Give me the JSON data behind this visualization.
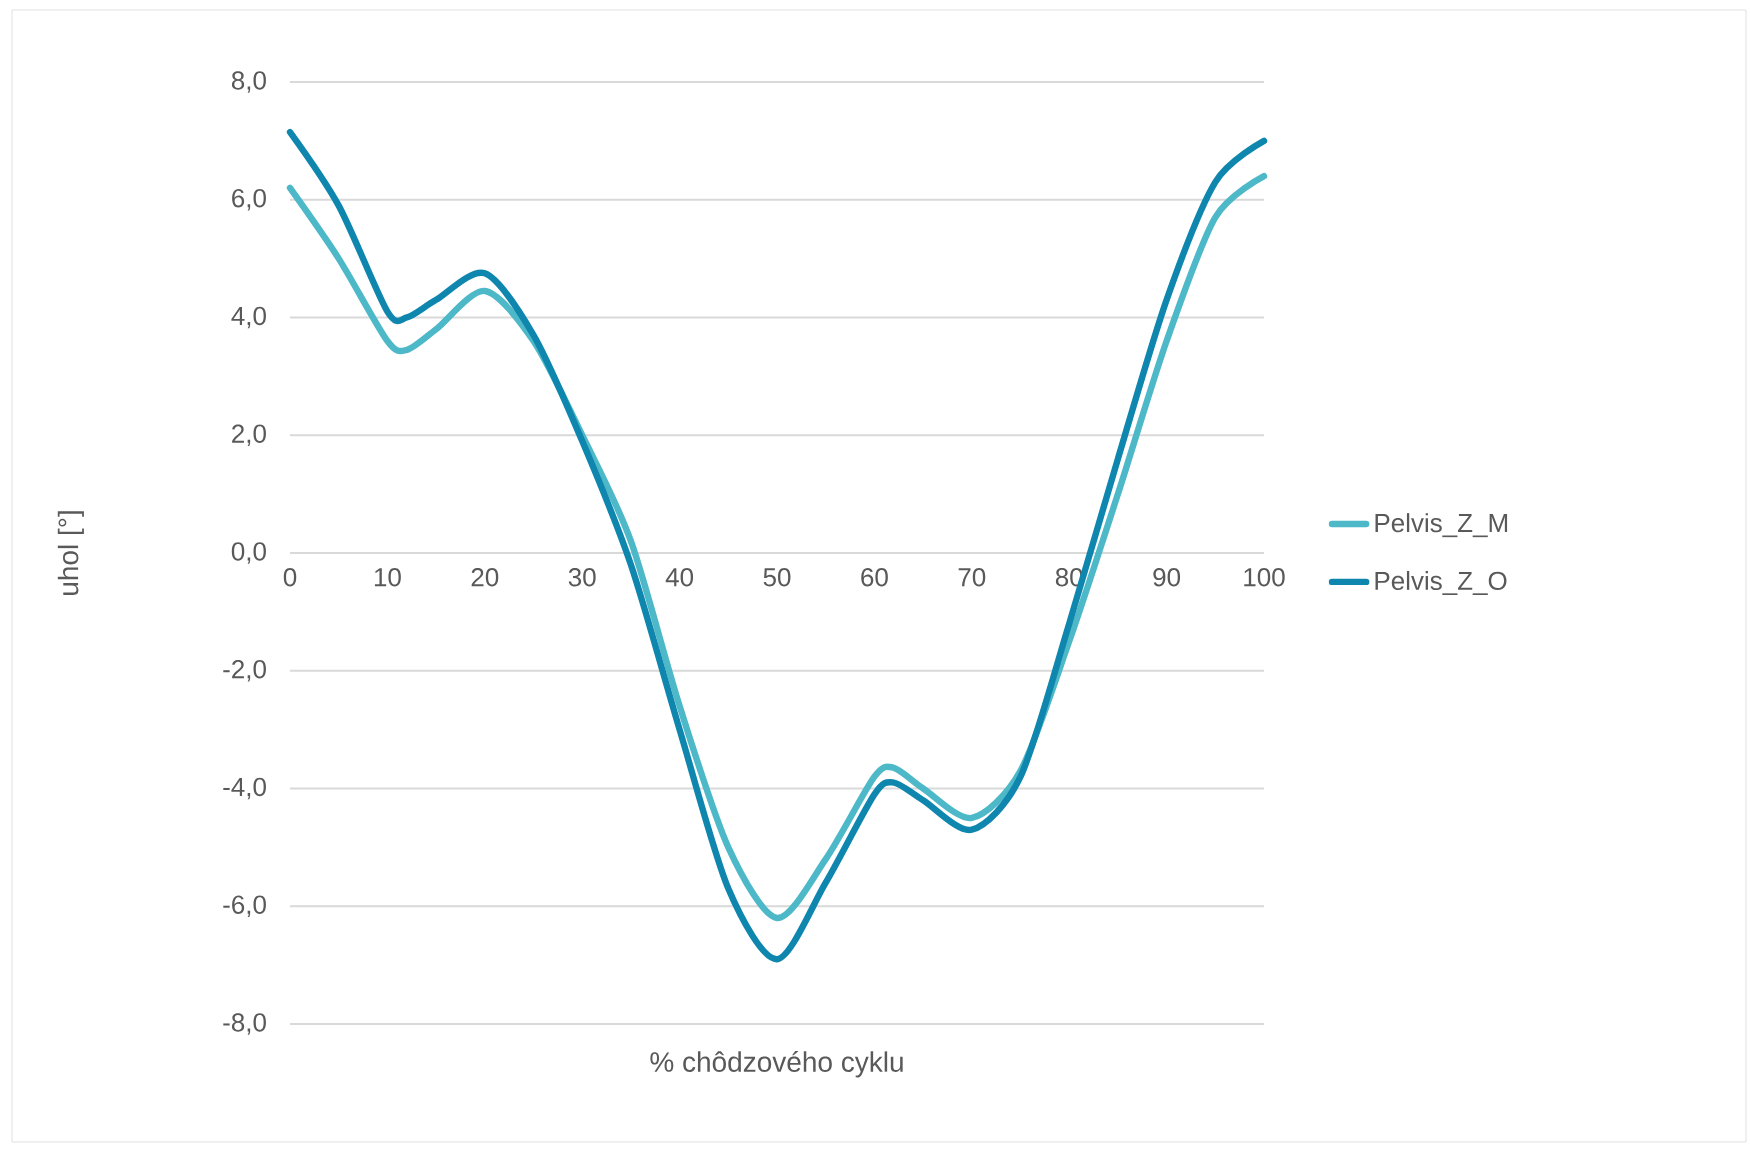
{
  "chart_data": {
    "type": "line",
    "xlabel": "% chôdzového cyklu",
    "ylabel": "uhol [°]",
    "x": [
      0,
      5,
      10,
      12,
      15,
      20,
      25,
      30,
      35,
      40,
      45,
      50,
      55,
      60,
      62,
      65,
      70,
      75,
      80,
      85,
      90,
      95,
      100
    ],
    "series": [
      {
        "name": "Pelvis_Z_M",
        "color": "#4db8c8",
        "values": [
          6.2,
          5.0,
          3.6,
          3.45,
          3.8,
          4.45,
          3.6,
          2.0,
          0.2,
          -2.6,
          -5.0,
          -6.2,
          -5.2,
          -3.8,
          -3.65,
          -4.0,
          -4.5,
          -3.7,
          -1.5,
          1.0,
          3.6,
          5.7,
          6.4
        ]
      },
      {
        "name": "Pelvis_Z_O",
        "color": "#0e86ae",
        "values": [
          7.15,
          5.9,
          4.1,
          4.0,
          4.3,
          4.75,
          3.7,
          1.9,
          -0.2,
          -3.0,
          -5.7,
          -6.9,
          -5.6,
          -4.1,
          -3.9,
          -4.2,
          -4.7,
          -3.8,
          -1.2,
          1.6,
          4.3,
          6.3,
          7.0
        ]
      }
    ],
    "xlim": [
      0,
      100
    ],
    "ylim": [
      -8,
      8
    ],
    "xticks": [
      0,
      10,
      20,
      30,
      40,
      50,
      60,
      70,
      80,
      90,
      100
    ],
    "yticks": [
      {
        "value": -8,
        "label": "-8,0"
      },
      {
        "value": -6,
        "label": "-6,0"
      },
      {
        "value": -4,
        "label": "-4,0"
      },
      {
        "value": -2,
        "label": "-2,0"
      },
      {
        "value": 0,
        "label": "0,0"
      },
      {
        "value": 2,
        "label": "2,0"
      },
      {
        "value": 4,
        "label": "4,0"
      },
      {
        "value": 6,
        "label": "6,0"
      },
      {
        "value": 8,
        "label": "8,0"
      }
    ],
    "grid": "y",
    "legend": "right",
    "marker": "none",
    "line_style": "solid"
  }
}
